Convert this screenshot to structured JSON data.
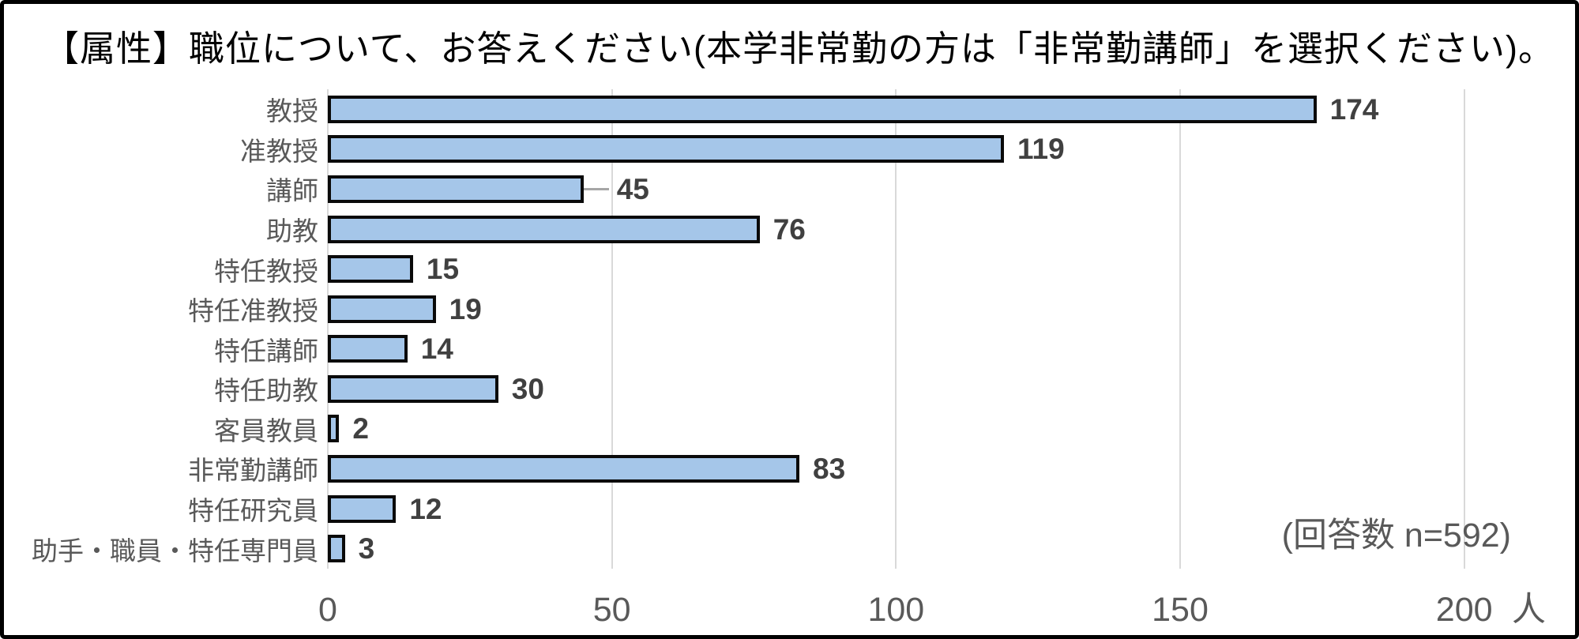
{
  "page": {
    "title": "【属性】職位について、お答えください(本学非常勤の方は「非常勤講師」を選択ください)。",
    "annotation": "(回答数 n=592)"
  },
  "chart_data": {
    "type": "bar",
    "orientation": "horizontal",
    "title": "【属性】職位について、お答えください(本学非常勤の方は「非常勤講師」を選択ください)。",
    "categories": [
      "教授",
      "准教授",
      "講師",
      "助教",
      "特任教授",
      "特任准教授",
      "特任講師",
      "特任助教",
      "客員教員",
      "非常勤講師",
      "特任研究員",
      "助手・職員・特任専門員"
    ],
    "values": [
      174,
      119,
      45,
      76,
      15,
      19,
      14,
      30,
      2,
      83,
      12,
      3
    ],
    "x_ticks": [
      0,
      50,
      100,
      150,
      200
    ],
    "xlim": [
      0,
      212
    ],
    "x_unit": "人",
    "grid": true,
    "legend": "none",
    "value_labels": true,
    "leader_line_index": 2,
    "annotation": "(回答数 n=592)",
    "colors": {
      "bar_fill": "#A5C6E9",
      "bar_border": "#0A0A0A",
      "gridline": "#D9D9D9",
      "category_label": "#595959",
      "value_label": "#404040",
      "axis_label": "#595959",
      "title": "#000000",
      "annotation": "#595959",
      "frame_border": "#000000"
    }
  }
}
